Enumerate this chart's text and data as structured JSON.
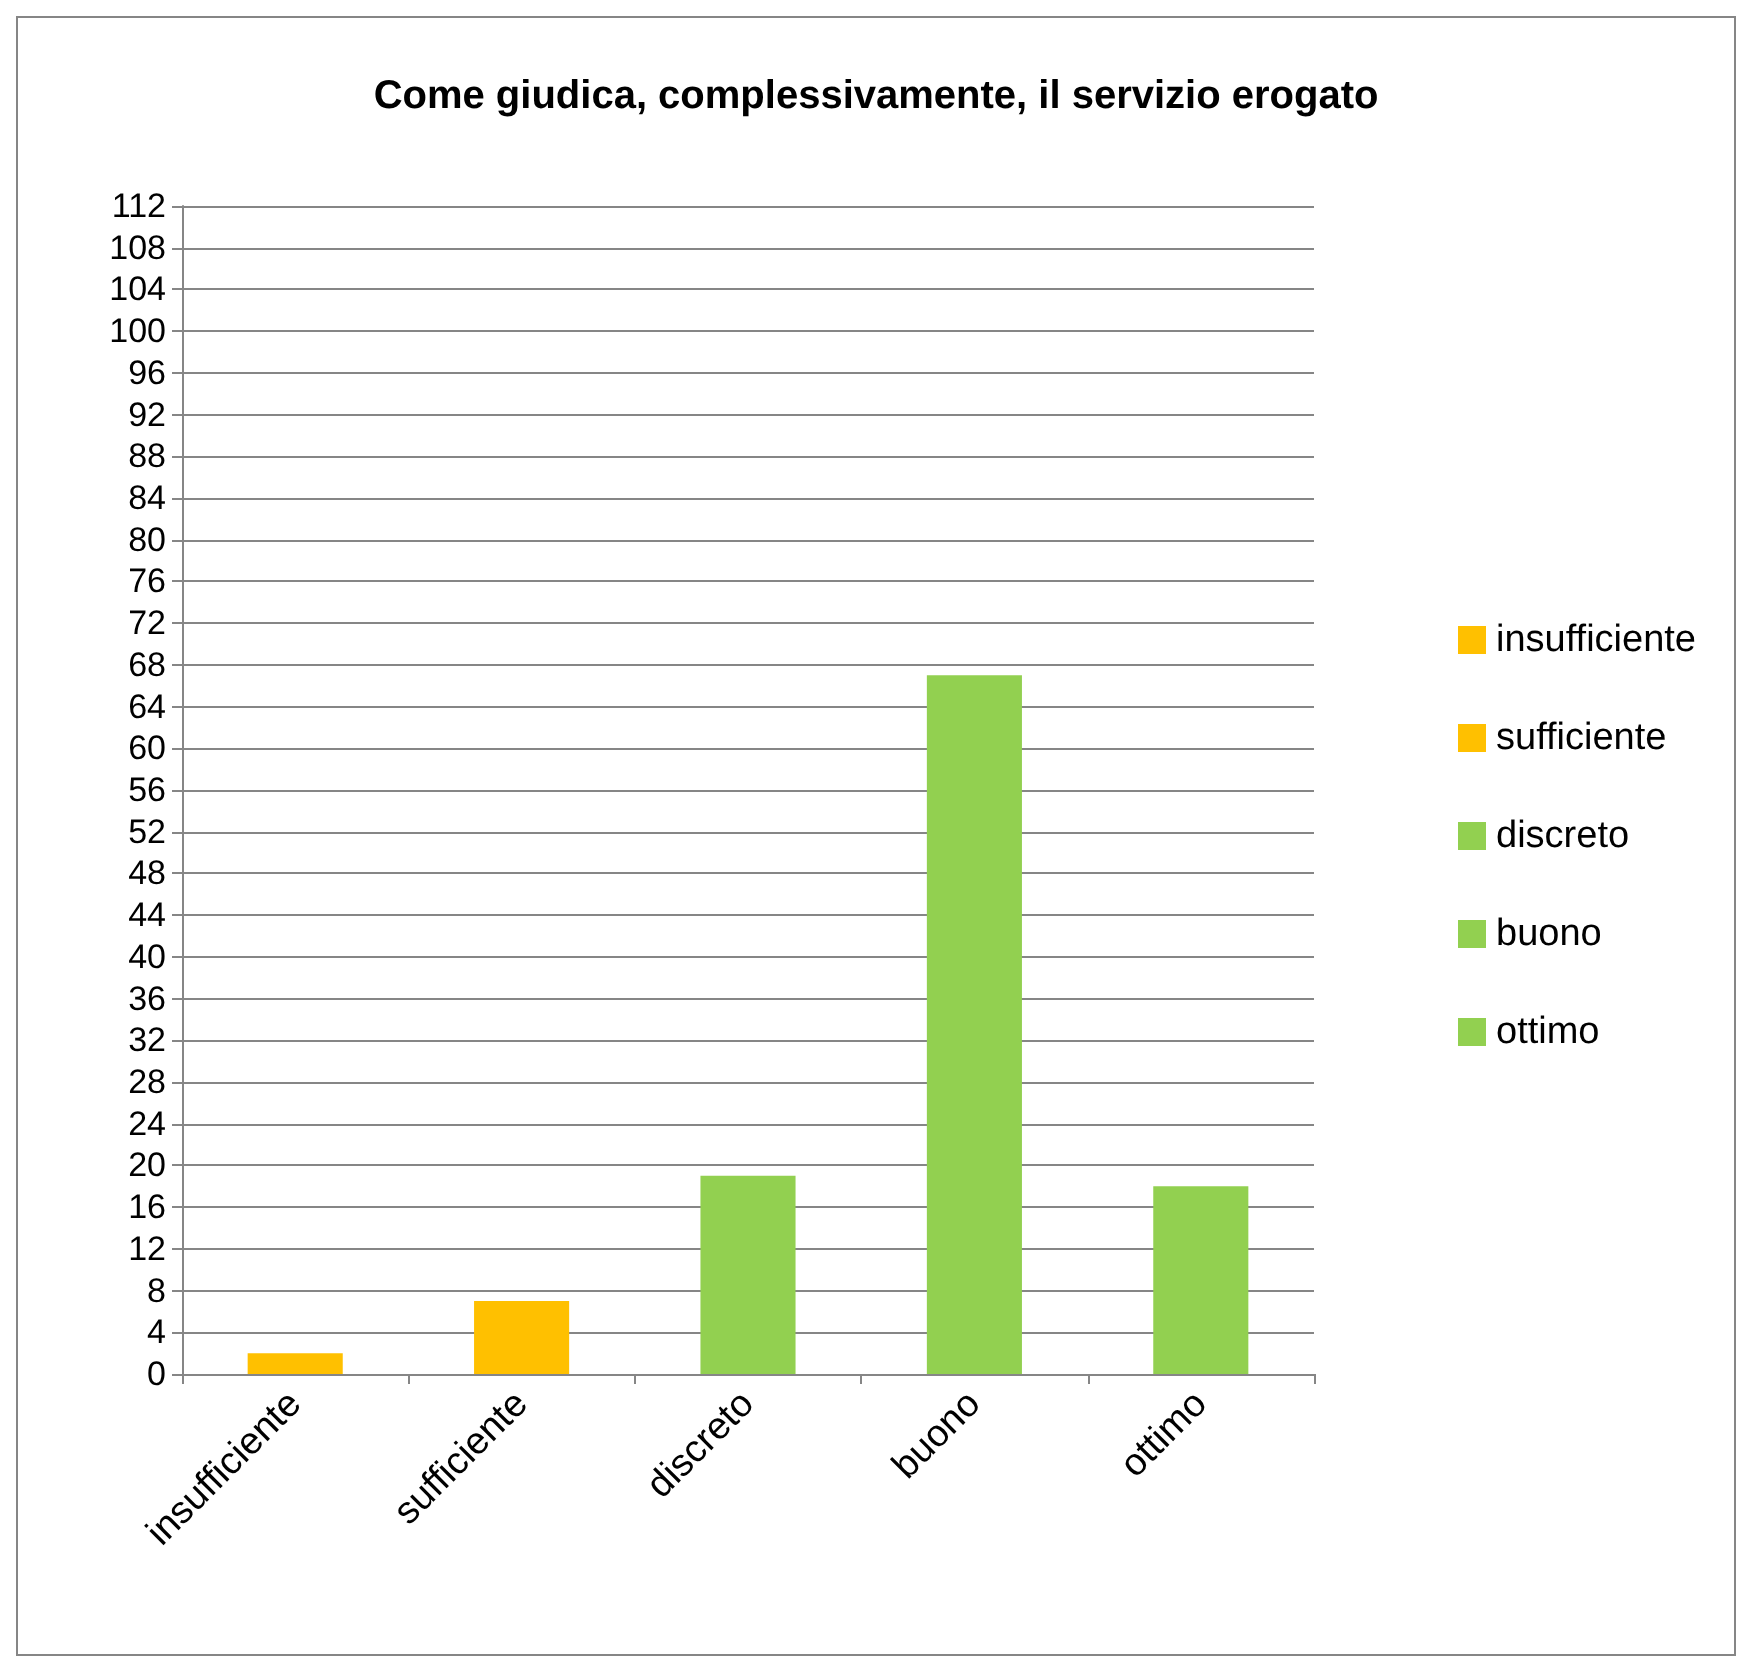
{
  "chart_data": {
    "type": "bar",
    "title": "Come giudica, complessivamente, il servizio erogato",
    "categories": [
      "insufficiente",
      "sufficiente",
      "discreto",
      "buono",
      "ottimo"
    ],
    "series": [
      {
        "name": "insufficiente",
        "color": "#ffc000",
        "values": [
          2,
          null,
          null,
          null,
          null
        ]
      },
      {
        "name": "sufficiente",
        "color": "#ffc000",
        "values": [
          null,
          7,
          null,
          null,
          null
        ]
      },
      {
        "name": "discreto",
        "color": "#92d050",
        "values": [
          null,
          null,
          19,
          null,
          null
        ]
      },
      {
        "name": "buono",
        "color": "#92d050",
        "values": [
          null,
          null,
          null,
          67,
          null
        ]
      },
      {
        "name": "ottimo",
        "color": "#92d050",
        "values": [
          null,
          null,
          null,
          null,
          18
        ]
      }
    ],
    "stacked": true,
    "ylim": [
      0,
      112
    ],
    "yticks": [
      0,
      4,
      8,
      12,
      16,
      20,
      24,
      28,
      32,
      36,
      40,
      44,
      48,
      52,
      56,
      60,
      64,
      68,
      72,
      76,
      80,
      84,
      88,
      92,
      96,
      100,
      104,
      108,
      112
    ],
    "grid": "y",
    "legend": "right"
  }
}
